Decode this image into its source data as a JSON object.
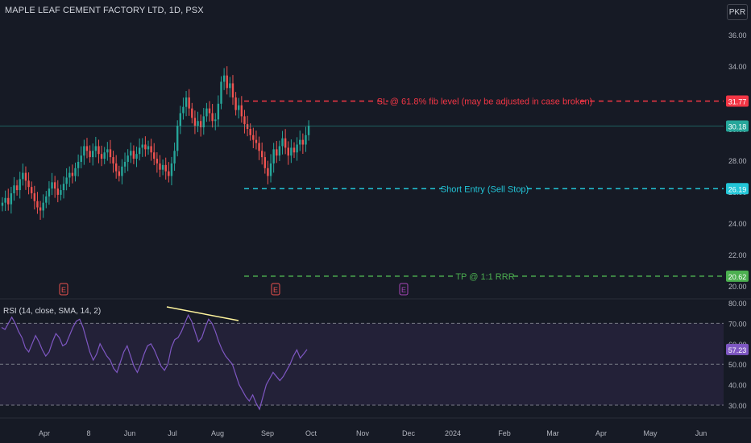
{
  "header": {
    "title": "MAPLE LEAF CEMENT FACTORY LTD, 1D, PSX",
    "currency": "PKR"
  },
  "rsi": {
    "label": "RSI (14, close, SMA, 14, 2)",
    "value_tag": "57.23"
  },
  "colors": {
    "background": "#161a25",
    "up": "#26a69a",
    "down": "#ef5350",
    "sl": "#f23645",
    "entry": "#22c5d7",
    "tp": "#4caf50",
    "rsi_line": "#7e57c2",
    "rsi_band": "#2a2540",
    "trendline": "#fff59d"
  },
  "chart_data": [
    {
      "type": "candlestick",
      "y_axis_ticks": [
        "36.00",
        "34.00",
        "32.00",
        "30.00",
        "28.00",
        "26.00",
        "24.00",
        "22.00",
        "20.00"
      ],
      "ylim": [
        20,
        36
      ],
      "x_axis_labels": [
        "Apr",
        "8",
        "Jun",
        "Jul",
        "Aug",
        "Sep",
        "Oct",
        "Nov",
        "Dec",
        "2024",
        "Feb",
        "Mar",
        "Apr",
        "May",
        "Jun"
      ],
      "current_price": "30.18",
      "close_series": [
        25.3,
        25.6,
        25.2,
        25.9,
        26.4,
        26.1,
        26.8,
        27.2,
        26.7,
        26.3,
        25.9,
        25.4,
        25.0,
        24.8,
        25.3,
        25.7,
        26.2,
        26.6,
        26.2,
        25.8,
        26.1,
        26.5,
        26.9,
        27.2,
        27.0,
        27.5,
        27.9,
        28.3,
        28.9,
        28.6,
        28.2,
        28.6,
        28.9,
        28.4,
        28.1,
        28.5,
        28.7,
        28.2,
        27.8,
        27.3,
        27.0,
        27.6,
        27.9,
        28.3,
        28.6,
        28.1,
        28.4,
        28.8,
        29.0,
        28.7,
        28.9,
        28.5,
        28.1,
        27.8,
        27.4,
        27.7,
        27.3,
        27.0,
        27.8,
        28.6,
        30.2,
        31.0,
        31.4,
        32.0,
        31.3,
        30.7,
        30.2,
        30.5,
        30.1,
        30.8,
        31.3,
        31.0,
        30.5,
        30.6,
        31.6,
        33.0,
        33.4,
        32.6,
        32.9,
        32.0,
        31.2,
        31.5,
        30.8,
        30.3,
        30.0,
        29.6,
        29.3,
        29.1,
        28.6,
        28.2,
        27.5,
        27.0,
        27.8,
        28.7,
        28.3,
        28.9,
        29.4,
        28.8,
        28.3,
        28.8,
        28.5,
        29.0,
        29.3,
        29.0,
        29.6,
        30.2
      ],
      "annotations": [
        {
          "label": "SL @ 61.8% fib level (may be adjusted in case broken)",
          "price": "31.77"
        },
        {
          "label": "Short Entry (Sell Stop)",
          "price": "26.19"
        },
        {
          "label": "TP @ 1:1 RRR",
          "price": "20.62"
        }
      ],
      "event_markers": [
        "E",
        "E",
        "E"
      ]
    },
    {
      "type": "line",
      "y_axis_ticks": [
        "80.00",
        "70.00",
        "60.00",
        "50.00",
        "40.00",
        "30.00"
      ],
      "ylim": [
        27,
        80
      ],
      "rsi_series": [
        68,
        67,
        70,
        73,
        70,
        66,
        63,
        58,
        56,
        60,
        64,
        61,
        57,
        54,
        56,
        61,
        65,
        63,
        59,
        60,
        64,
        68,
        71,
        72,
        68,
        62,
        56,
        52,
        55,
        60,
        57,
        54,
        52,
        48,
        46,
        51,
        56,
        59,
        54,
        49,
        46,
        50,
        55,
        59,
        60,
        57,
        53,
        49,
        47,
        50,
        58,
        62,
        63,
        66,
        70,
        74,
        71,
        66,
        61,
        63,
        68,
        72,
        70,
        66,
        61,
        57,
        54,
        52,
        50,
        45,
        40,
        37,
        34,
        32,
        35,
        31,
        28,
        34,
        40,
        43,
        46,
        44,
        42,
        44,
        47,
        50,
        54,
        57,
        53,
        55,
        57.23
      ],
      "trendline": true
    }
  ]
}
